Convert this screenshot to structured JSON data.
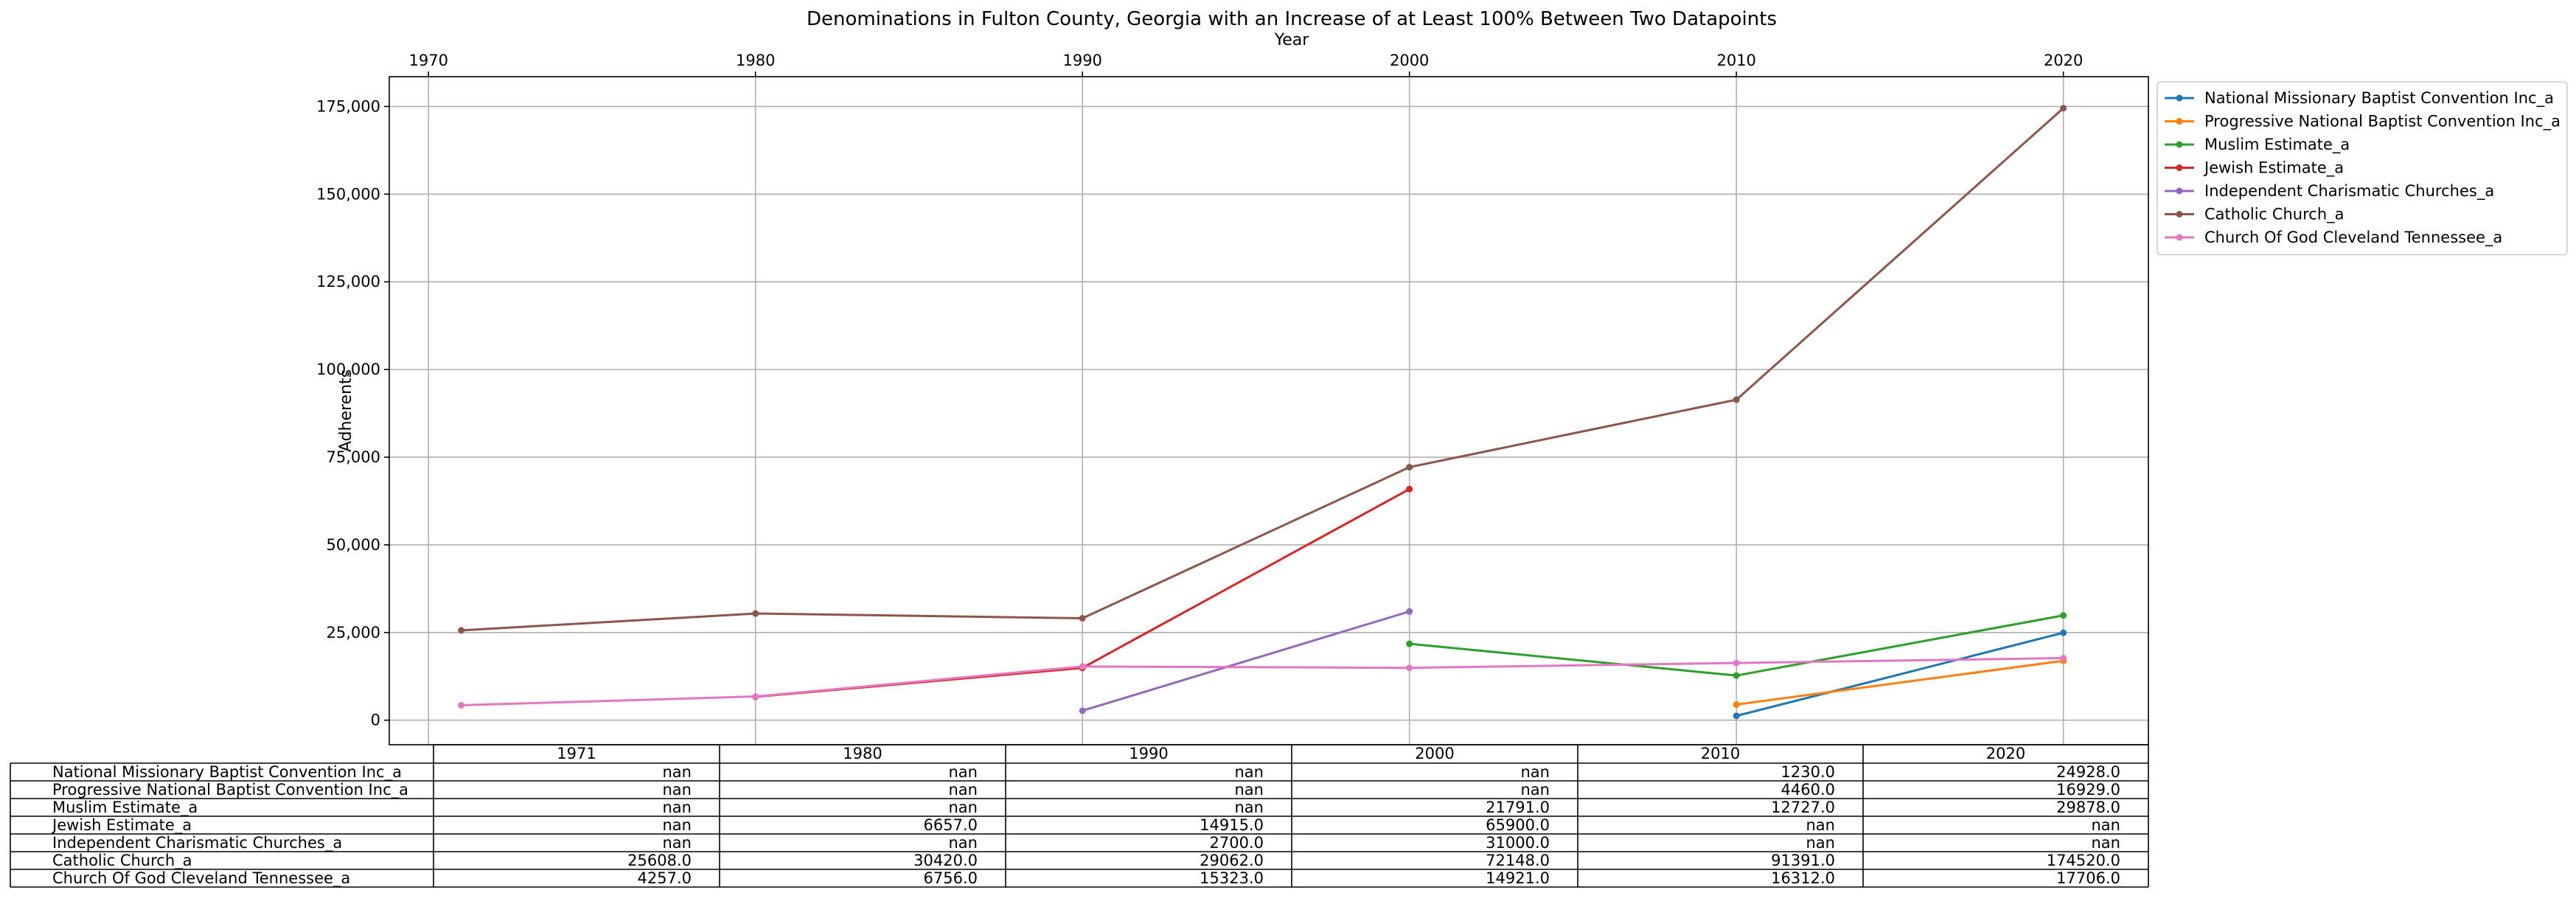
{
  "chart_data": {
    "type": "line",
    "title": "Denominations in Fulton County, Georgia with an Increase of at Least 100% Between Two Datapoints",
    "xlabel": "Year",
    "ylabel": "Adherents",
    "x_ticks": [
      "1970",
      "1980",
      "1990",
      "2000",
      "2010",
      "2020"
    ],
    "y_ticks": [
      "0",
      "25,000",
      "50,000",
      "75,000",
      "100,000",
      "125,000",
      "150,000",
      "175,000"
    ],
    "xlim": [
      1968.8,
      2022.6
    ],
    "ylim": [
      -7000,
      183500
    ],
    "grid": true,
    "legend_position": "outside-top-right",
    "x": [
      1971,
      1980,
      1990,
      2000,
      2010,
      2020
    ],
    "series": [
      {
        "name": "National Missionary Baptist Convention Inc_a",
        "color": "#1f77b4",
        "values": [
          null,
          null,
          null,
          null,
          1230.0,
          24928.0
        ],
        "table": [
          "nan",
          "nan",
          "nan",
          "nan",
          "1230.0",
          "24928.0"
        ]
      },
      {
        "name": "Progressive National Baptist Convention Inc_a",
        "color": "#ff7f0e",
        "values": [
          null,
          null,
          null,
          null,
          4460.0,
          16929.0
        ],
        "table": [
          "nan",
          "nan",
          "nan",
          "nan",
          "4460.0",
          "16929.0"
        ]
      },
      {
        "name": "Muslim Estimate_a",
        "color": "#2ca02c",
        "values": [
          null,
          null,
          null,
          21791.0,
          12727.0,
          29878.0
        ],
        "table": [
          "nan",
          "nan",
          "nan",
          "21791.0",
          "12727.0",
          "29878.0"
        ]
      },
      {
        "name": "Jewish Estimate_a",
        "color": "#d62728",
        "values": [
          null,
          6657.0,
          14915.0,
          65900.0,
          null,
          null
        ],
        "table": [
          "nan",
          "6657.0",
          "14915.0",
          "65900.0",
          "nan",
          "nan"
        ]
      },
      {
        "name": "Independent Charismatic Churches_a",
        "color": "#9467bd",
        "values": [
          null,
          null,
          2700.0,
          31000.0,
          null,
          null
        ],
        "table": [
          "nan",
          "nan",
          "2700.0",
          "31000.0",
          "nan",
          "nan"
        ]
      },
      {
        "name": "Catholic Church_a",
        "color": "#8c564b",
        "values": [
          25608.0,
          30420.0,
          29062.0,
          72148.0,
          91391.0,
          174520.0
        ],
        "table": [
          "25608.0",
          "30420.0",
          "29062.0",
          "72148.0",
          "91391.0",
          "174520.0"
        ]
      },
      {
        "name": "Church Of God Cleveland Tennessee_a",
        "color": "#e377c2",
        "values": [
          4257.0,
          6756.0,
          15323.0,
          14921.0,
          16312.0,
          17706.0
        ],
        "table": [
          "4257.0",
          "6756.0",
          "15323.0",
          "14921.0",
          "16312.0",
          "17706.0"
        ]
      }
    ],
    "table_columns": [
      "1971",
      "1980",
      "1990",
      "2000",
      "2010",
      "2020"
    ]
  }
}
